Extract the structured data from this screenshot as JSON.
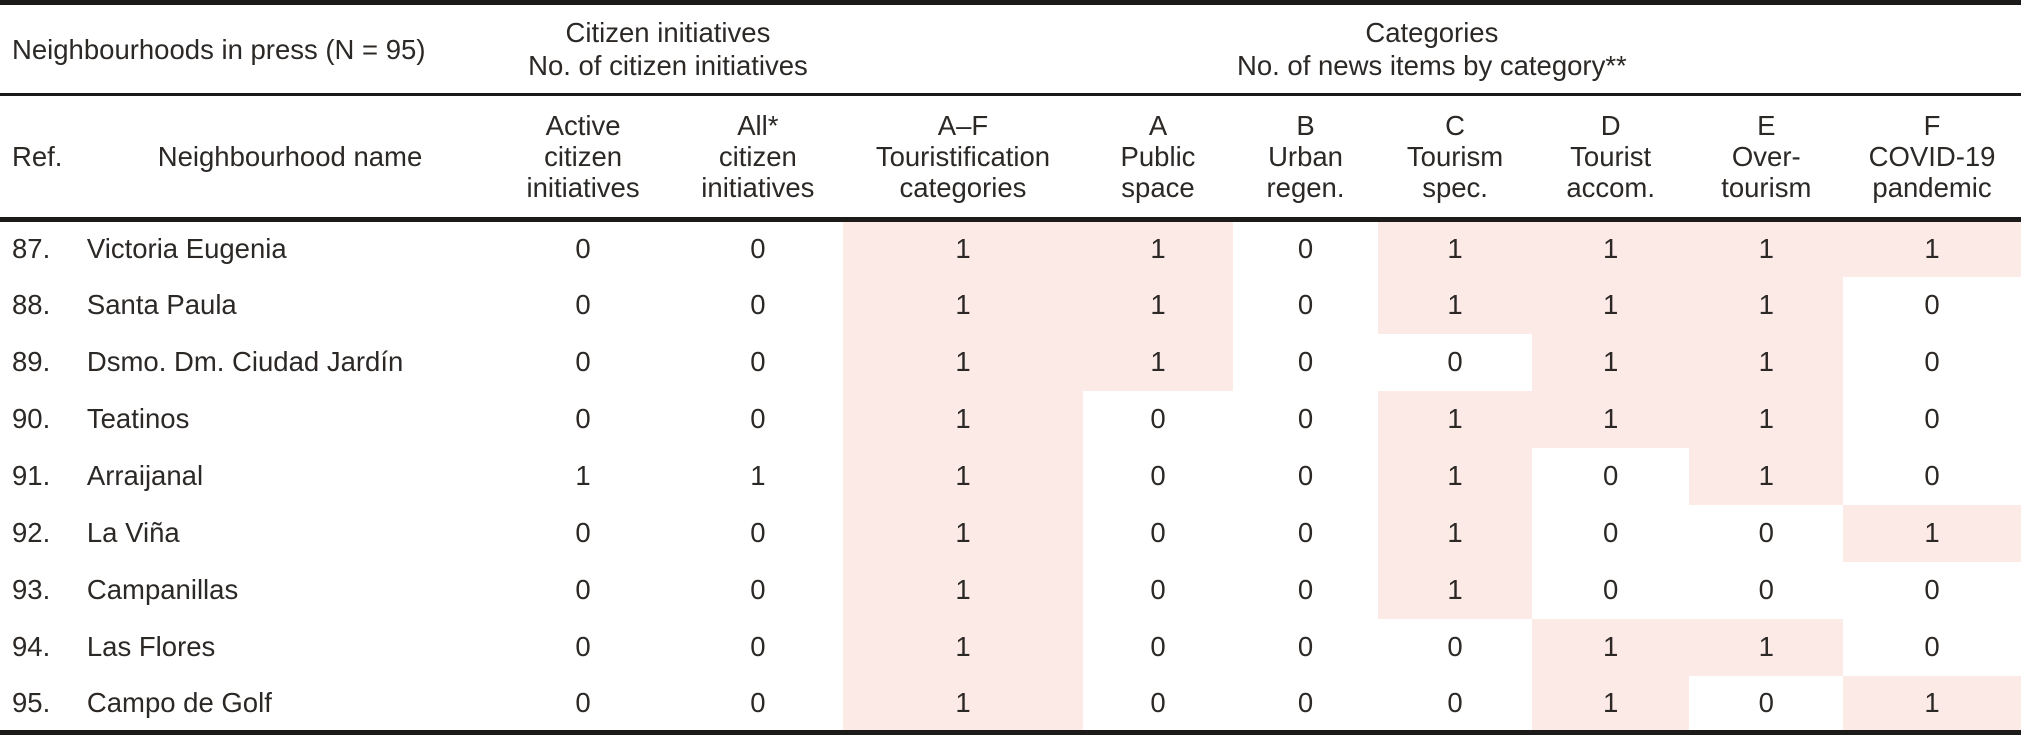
{
  "table": {
    "groups": [
      {
        "title": "Neighbourhoods in press (N = 95)"
      },
      {
        "title": "Citizen initiatives\nNo. of citizen initiatives"
      },
      {
        "title": "Categories\nNo. of news items by category**"
      }
    ],
    "columns": [
      {
        "label": "Ref."
      },
      {
        "label": "Neighbourhood name"
      },
      {
        "label": "Active\ncitizen\ninitiatives"
      },
      {
        "label": "All*\ncitizen\ninitiatives"
      },
      {
        "label": "A–F\nTouristification\ncategories"
      },
      {
        "label": "A\nPublic\nspace"
      },
      {
        "label": "B\nUrban\nregen."
      },
      {
        "label": "C\nTourism\nspec."
      },
      {
        "label": "D\nTourist\naccom."
      },
      {
        "label": "E\nOver-\ntourism"
      },
      {
        "label": "F\nCOVID-19\npandemic"
      }
    ],
    "rows": [
      {
        "ref": "87.",
        "name": "Victoria Eugenia",
        "values": [
          0,
          0,
          1,
          1,
          0,
          1,
          1,
          1,
          1
        ]
      },
      {
        "ref": "88.",
        "name": "Santa Paula",
        "values": [
          0,
          0,
          1,
          1,
          0,
          1,
          1,
          1,
          0
        ]
      },
      {
        "ref": "89.",
        "name": "Dsmo. Dm. Ciudad Jardín",
        "values": [
          0,
          0,
          1,
          1,
          0,
          0,
          1,
          1,
          0
        ]
      },
      {
        "ref": "90.",
        "name": "Teatinos",
        "values": [
          0,
          0,
          1,
          0,
          0,
          1,
          1,
          1,
          0
        ]
      },
      {
        "ref": "91.",
        "name": "Arraijanal",
        "values": [
          1,
          1,
          1,
          0,
          0,
          1,
          0,
          1,
          0
        ]
      },
      {
        "ref": "92.",
        "name": "La Viña",
        "values": [
          0,
          0,
          1,
          0,
          0,
          1,
          0,
          0,
          1
        ]
      },
      {
        "ref": "93.",
        "name": "Campanillas",
        "values": [
          0,
          0,
          1,
          0,
          0,
          1,
          0,
          0,
          0
        ]
      },
      {
        "ref": "94.",
        "name": "Las Flores",
        "values": [
          0,
          0,
          1,
          0,
          0,
          0,
          1,
          1,
          0
        ]
      },
      {
        "ref": "95.",
        "name": "Campo de Golf",
        "values": [
          0,
          0,
          1,
          0,
          0,
          0,
          1,
          0,
          1
        ]
      }
    ],
    "highlight": {
      "rule": "category columns (A–F total and A..F) with value 1 get pink background",
      "color": "#fceae7"
    },
    "colors": {
      "rule_line": "#1d1b1a",
      "text": "#2b2826",
      "background": "#ffffff"
    }
  }
}
